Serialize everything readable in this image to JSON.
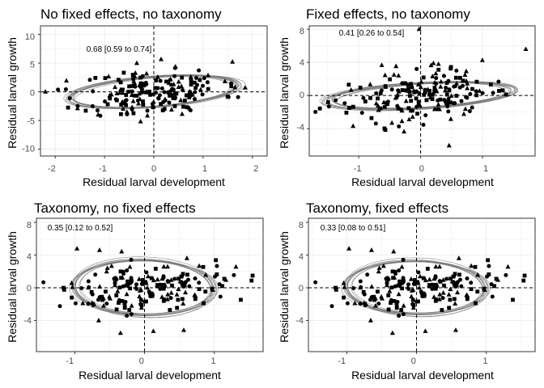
{
  "chart_data": [
    {
      "type": "scatter",
      "title": "No fixed effects, no taxonomy",
      "xlabel": "Residual larval development",
      "ylabel": "Residual larval growth",
      "xlim": [
        -2.3,
        2.3
      ],
      "ylim": [
        -11.2,
        11.5
      ],
      "xticks": [
        -2,
        -1,
        0,
        1,
        2
      ],
      "yticks": [
        -10,
        -5,
        0,
        5,
        10
      ],
      "annotation": "0.68 [0.59 to 0.74]",
      "annotation_pos": [
        -1.05,
        7.6
      ],
      "ellipse": {
        "cx": 0.0,
        "cy": 0.0,
        "rx": 2.0,
        "ry": 3.4,
        "angle": 0.75
      },
      "seed": 11
    },
    {
      "type": "scatter",
      "title": "Fixed effects, no taxonomy",
      "xlabel": "Residual larval development",
      "ylabel": "Residual larval growth",
      "xlim": [
        -1.8,
        1.85
      ],
      "ylim": [
        -7.3,
        8.4
      ],
      "xticks": [
        -1,
        0,
        1
      ],
      "yticks": [
        -4,
        0,
        4,
        8
      ],
      "annotation": "0.41 [0.26 to 0.54]",
      "annotation_pos": [
        -0.96,
        7.6
      ],
      "ellipse": {
        "cx": 0.0,
        "cy": 0.0,
        "rx": 1.58,
        "ry": 2.45,
        "angle": 0.42
      },
      "seed": 23
    },
    {
      "type": "scatter",
      "title": "Taxonomy, no fixed effects",
      "xlabel": "Residual larval development",
      "ylabel": "Residual larval growth",
      "xlim": [
        -1.55,
        1.7
      ],
      "ylim": [
        -7.8,
        8.5
      ],
      "xticks": [
        -1,
        0,
        1
      ],
      "yticks": [
        -4,
        0,
        4,
        8
      ],
      "annotation": "0.35 [0.12 to 0.52]",
      "annotation_pos": [
        -1.28,
        7.5
      ],
      "ellipse": {
        "cx": 0.0,
        "cy": 0.0,
        "rx": 1.0,
        "ry": 3.05,
        "angle": 0.23
      },
      "seed": 37
    },
    {
      "type": "scatter",
      "title": "Taxonomy, fixed effects",
      "xlabel": "Residual larval development",
      "ylabel": "Residual larval growth",
      "xlim": [
        -1.55,
        1.7
      ],
      "ylim": [
        -7.8,
        8.5
      ],
      "xticks": [
        -1,
        0,
        1
      ],
      "yticks": [
        -4,
        0,
        4,
        8
      ],
      "annotation": "0.33 [0.08 to 0.51]",
      "annotation_pos": [
        -1.28,
        7.5
      ],
      "ellipse": {
        "cx": 0.0,
        "cy": 0.0,
        "rx": 1.0,
        "ry": 3.0,
        "angle": 0.22
      },
      "seed": 37
    }
  ]
}
